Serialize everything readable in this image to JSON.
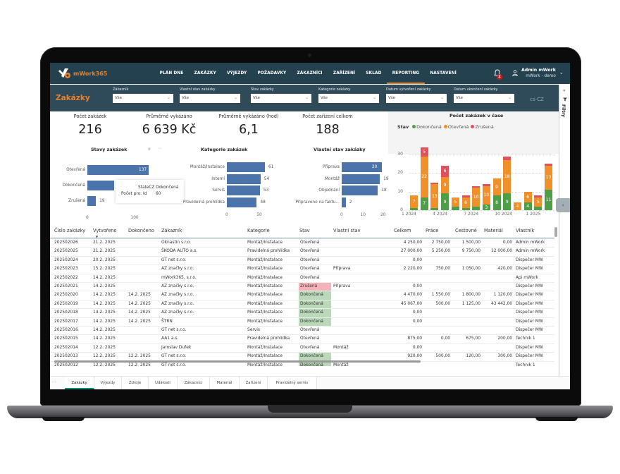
{
  "app": {
    "logo_text": "mWork365",
    "nav": [
      "PLÁN DNE",
      "ZAKÁZKY",
      "VÝJEZDY",
      "POŽADAVKY",
      "ZÁKAZNÍCI",
      "ZAŘÍZENÍ",
      "SKLAD",
      "REPORTING",
      "NASTAVENÍ"
    ],
    "active_nav": "REPORTING",
    "notification_count": "2",
    "user_name": "Admin mWork",
    "user_tenant": "mWork - demo",
    "accent_color": "#e8812a",
    "nav_bg": "#244150"
  },
  "filterbar": {
    "title": "Zakázky",
    "filters": [
      {
        "label": "Zákazník",
        "value": "Vše"
      },
      {
        "label": "Vlastní stav zakázky",
        "value": "Vše"
      },
      {
        "label": "Stav zakázky",
        "value": "Vše"
      },
      {
        "label": "Kategorie zakázky",
        "value": "Vše"
      },
      {
        "label": "Datum vytvoření zakázky",
        "value": "Vše"
      },
      {
        "label": "Datum ukončení zakázky",
        "value": "Vše"
      }
    ],
    "locale": "cs-CZ"
  },
  "filterpane": {
    "label": "Filtry",
    "collapse": "«",
    "expand": "‹"
  },
  "kpis": [
    {
      "label": "Počet zakázek",
      "value": "216"
    },
    {
      "label": "Průměrně vykázáno",
      "value": "6 639 Kč"
    },
    {
      "label": "Průměrně vykázáno (hod)",
      "value": "6,1"
    },
    {
      "label": "Počet zařízení celkem",
      "value": "188"
    }
  ],
  "charts": {
    "stavy": {
      "title": "Stavy zakázek",
      "rows": [
        {
          "label": "Otevřená",
          "value": "137"
        },
        {
          "label": "Dokončená",
          "value": "60"
        },
        {
          "label": "Zrušená",
          "value": "19"
        }
      ],
      "ticks": [
        "0",
        "100"
      ],
      "tooltip": {
        "k1": "StateCZ",
        "v1": "Dokončená",
        "k2": "Počet pro: Id",
        "v2": "60"
      }
    },
    "kategorie": {
      "title": "Kategorie zakázek",
      "rows": [
        {
          "label": "Montáž/Instalace",
          "value": "61"
        },
        {
          "label": "Interní",
          "value": "54"
        },
        {
          "label": "Servis",
          "value": "53"
        },
        {
          "label": "Pravidelná prohlídka",
          "value": "48"
        }
      ],
      "ticks": [
        "0",
        "50"
      ]
    },
    "vlastni": {
      "title": "Vlastní stav zakázky",
      "rows": [
        {
          "label": "Příprava",
          "value": "20"
        },
        {
          "label": "Montáž",
          "value": "19"
        },
        {
          "label": "Objednání",
          "value": "18"
        },
        {
          "label": "Připraveno na faktu...",
          "value": "2"
        }
      ],
      "ticks": [
        "0",
        "10",
        "20"
      ]
    },
    "cas": {
      "title": "Počet zakázek v čase",
      "legend_title": "Stav",
      "legend": [
        {
          "label": "Dokončená",
          "color": "#4e9e48"
        },
        {
          "label": "Otevřená",
          "color": "#f0902a"
        },
        {
          "label": "Zrušená",
          "color": "#e0515e"
        }
      ],
      "yticks": [
        "0",
        "10",
        "20",
        "30"
      ],
      "xticks": [
        "1 2024",
        "4 2024",
        "7 2024",
        "10 2024",
        "1 2025"
      ]
    }
  },
  "chart_data": [
    {
      "type": "bar",
      "title": "Stavy zakázek",
      "orientation": "horizontal",
      "categories": [
        "Otevřená",
        "Dokončená",
        "Zrušená"
      ],
      "values": [
        137,
        60,
        19
      ],
      "xlim": [
        0,
        140
      ]
    },
    {
      "type": "bar",
      "title": "Kategorie zakázek",
      "orientation": "horizontal",
      "categories": [
        "Montáž/Instalace",
        "Interní",
        "Servis",
        "Pravidelná prohlídka"
      ],
      "values": [
        61,
        54,
        53,
        48
      ],
      "xlim": [
        0,
        65
      ]
    },
    {
      "type": "bar",
      "title": "Vlastní stav zakázky",
      "orientation": "horizontal",
      "categories": [
        "Příprava",
        "Montáž",
        "Objednání",
        "Připraveno na faktu..."
      ],
      "values": [
        20,
        19,
        18,
        2
      ],
      "xlim": [
        0,
        20
      ]
    },
    {
      "type": "bar",
      "stacked": true,
      "title": "Počet zakázek v čase",
      "legend_title": "Stav",
      "categories": [
        "1 2024",
        "2 2024",
        "3 2024",
        "4 2024",
        "5 2024",
        "6 2024",
        "7 2024",
        "8 2024",
        "9 2024",
        "10 2024",
        "11 2024",
        "12 2024",
        "1 2025",
        "2 2025"
      ],
      "series": [
        {
          "name": "Dokončená",
          "color": "#4e9e48",
          "values": [
            1,
            7,
            1,
            9,
            2,
            1,
            2,
            3,
            8,
            9,
            0,
            4,
            2,
            11
          ]
        },
        {
          "name": "Otevřená",
          "color": "#f0902a",
          "values": [
            7,
            22,
            13,
            9,
            5,
            6,
            10,
            10,
            9,
            18,
            4,
            6,
            5,
            13
          ]
        },
        {
          "name": "Zrušená",
          "color": "#e0515e",
          "values": [
            0,
            5,
            1,
            6,
            0,
            1,
            1,
            1,
            0,
            2,
            0,
            0,
            1,
            1
          ]
        }
      ],
      "ylim": [
        0,
        35
      ],
      "yticks": [
        0,
        10,
        20,
        30
      ],
      "xticks": [
        "1 2024",
        "4 2024",
        "7 2024",
        "10 2024",
        "1 2025"
      ]
    }
  ],
  "table": {
    "columns": [
      "Číslo zakázky",
      "Vytvořeno",
      "Dokončeno",
      "Zákazník",
      "Kategorie",
      "Stav",
      "Vlastní stav",
      "Celkem",
      "Práce",
      "Cestovné",
      "Materiál",
      "Vlastník"
    ],
    "rows": [
      [
        "202502026",
        "21.2. 2025",
        "",
        "Oknastin s.r.o.",
        "Montáž/Instalace",
        "Otevřená",
        "",
        "4 250,00",
        "2 750,00",
        "1 500,00",
        "0,00",
        "Admin mWork"
      ],
      [
        "202502025",
        "21.2. 2025",
        "",
        "ŠKODA AUTO a.s.",
        "Pravidelná prohlídka",
        "Otevřená",
        "",
        "27 000,00",
        "5 250,00",
        "9 750,00",
        "12 000,00",
        "Admin mWork"
      ],
      [
        "202502024",
        "20.2. 2025",
        "",
        "GT net s.r.o.",
        "Montáž/Instalace",
        "Otevřená",
        "",
        "0,00",
        "",
        "",
        "",
        "Dispečer MW"
      ],
      [
        "202502023",
        "15.2. 2025",
        "",
        "AZ značky s.r.o.",
        "Montáž/Instalace",
        "Otevřená",
        "Příprava",
        "2 220,00",
        "750,00",
        "1 050,00",
        "420,00",
        "Dispečer MW"
      ],
      [
        "202502022",
        "14.2. 2025",
        "",
        "mWork365, s.r.o.",
        "Montáž/Instalace",
        "Otevřená",
        "",
        "",
        "",
        "",
        "",
        "Api mWork"
      ],
      [
        "202502021",
        "14.2. 2025",
        "",
        "AZ značky s.r.o.",
        "Montáž/Instalace",
        "Zrušená",
        "Příprava",
        "0,00",
        "",
        "",
        "",
        "Dispečer MW"
      ],
      [
        "202502020",
        "14.2. 2025",
        "14.2. 2025",
        "AZ značky s.r.o.",
        "Montáž/Instalace",
        "Dokončená",
        "",
        "4 470,00",
        "1 550,00",
        "1 800,00",
        "1 120,00",
        "Dispečer MW"
      ],
      [
        "202502019",
        "14.2. 2025",
        "14.2. 2025",
        "AZ značky s.r.o.",
        "Montáž/Instalace",
        "Dokončená",
        "",
        "45 067,00",
        "500,00",
        "1 125,00",
        "43 442,00",
        "Dispečer MW"
      ],
      [
        "202502018",
        "14.2. 2025",
        "14.2. 2025",
        "AZ značky s.r.o.",
        "Montáž/Instalace",
        "Dokončená",
        "",
        "0,00",
        "",
        "",
        "",
        "Dispečer MW"
      ],
      [
        "202502017",
        "14.2. 2025",
        "14.2. 2025",
        "ŠTRN",
        "Montáž/Instalace",
        "Dokončená",
        "",
        "0,00",
        "",
        "",
        "",
        "Dispečer MW"
      ],
      [
        "202502016",
        "14.2. 2025",
        "",
        "GT net s.r.o.",
        "Servis",
        "Otevřená",
        "",
        "",
        "",
        "",
        "",
        "Dispečer MW"
      ],
      [
        "202502015",
        "14.2. 2025",
        "",
        "AA1 a.s.",
        "Pravidelná prohlídka",
        "Otevřená",
        "",
        "875,00",
        "0,00",
        "675,00",
        "200,00",
        "Technik 1"
      ],
      [
        "202502014",
        "12.2. 2025",
        "",
        "Jaroslav Dufek",
        "Montáž/Instalace",
        "Otevřená",
        "Montáž",
        "0,00",
        "",
        "",
        "",
        "Dispečer MW"
      ],
      [
        "202502013",
        "12.2. 2025",
        "12.2. 2025",
        "GT net s.r.o.",
        "Montáž/Instalace",
        "Dokončená",
        "",
        "920,00",
        "500,00",
        "120,00",
        "300,00",
        "Dispečer MW"
      ],
      [
        "202502012",
        "12.2. 2025",
        "12.2. 2025",
        "GT net s.r.o.",
        "Montáž/Instalace",
        "Dokončená",
        "Montáž",
        "",
        "",
        "",
        "",
        "Technik 1"
      ]
    ]
  },
  "tabs": [
    "Zakázky",
    "Výjezdy",
    "Zdroje",
    "Události",
    "Zákazníci",
    "Materiál",
    "Zařízení",
    "Pravidelný servis"
  ],
  "active_tab": "Zakázky"
}
